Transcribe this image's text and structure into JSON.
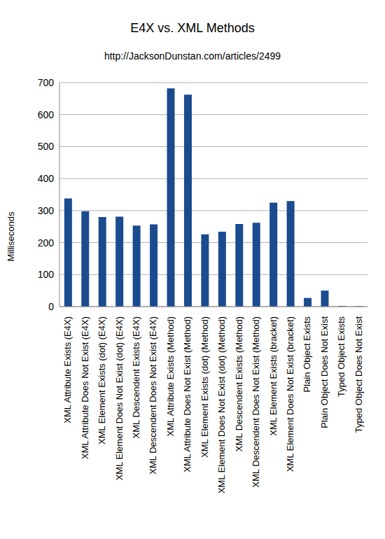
{
  "chart_data": {
    "type": "bar",
    "title": "E4X vs. XML Methods",
    "subtitle": "http://JacksonDunstan.com/articles/2499",
    "y_label": "Milliseconds",
    "categories": [
      "XML Attribute Exists (E4X)",
      "XML Attribute Does Not Exist (E4X)",
      "XML Element Exists (dot) (E4X)",
      "XML Element Does Not Exist (dot) (E4X)",
      "XML Descendent Exists (E4X)",
      "XML Descendent Does Not Exist (E4X)",
      "XML Attribute Exists (Method)",
      "XML Attribute Does Not Exist (Method)",
      "XML Element Exists (dot) (Method)",
      "XML Element Does Not Exist (dot) (Method)",
      "XML Descendent Exists (Method)",
      "XML Descendent Does Not Exist (Method)",
      "XML Element Exists (bracket)",
      "XML Element Does Not Exist (bracket)",
      "Plain Object Exists",
      "Plain Object Does Not Exist",
      "Typed Object Exists",
      "Typed Object Does Not Exist"
    ],
    "values": [
      338,
      298,
      280,
      281,
      253,
      257,
      682,
      662,
      226,
      234,
      258,
      262,
      325,
      330,
      27,
      50,
      2,
      1
    ],
    "color": "#1b4b8f",
    "ylim": [
      0,
      700
    ],
    "yticks": [
      0,
      100,
      200,
      300,
      400,
      500,
      600,
      700
    ],
    "grid": true
  }
}
